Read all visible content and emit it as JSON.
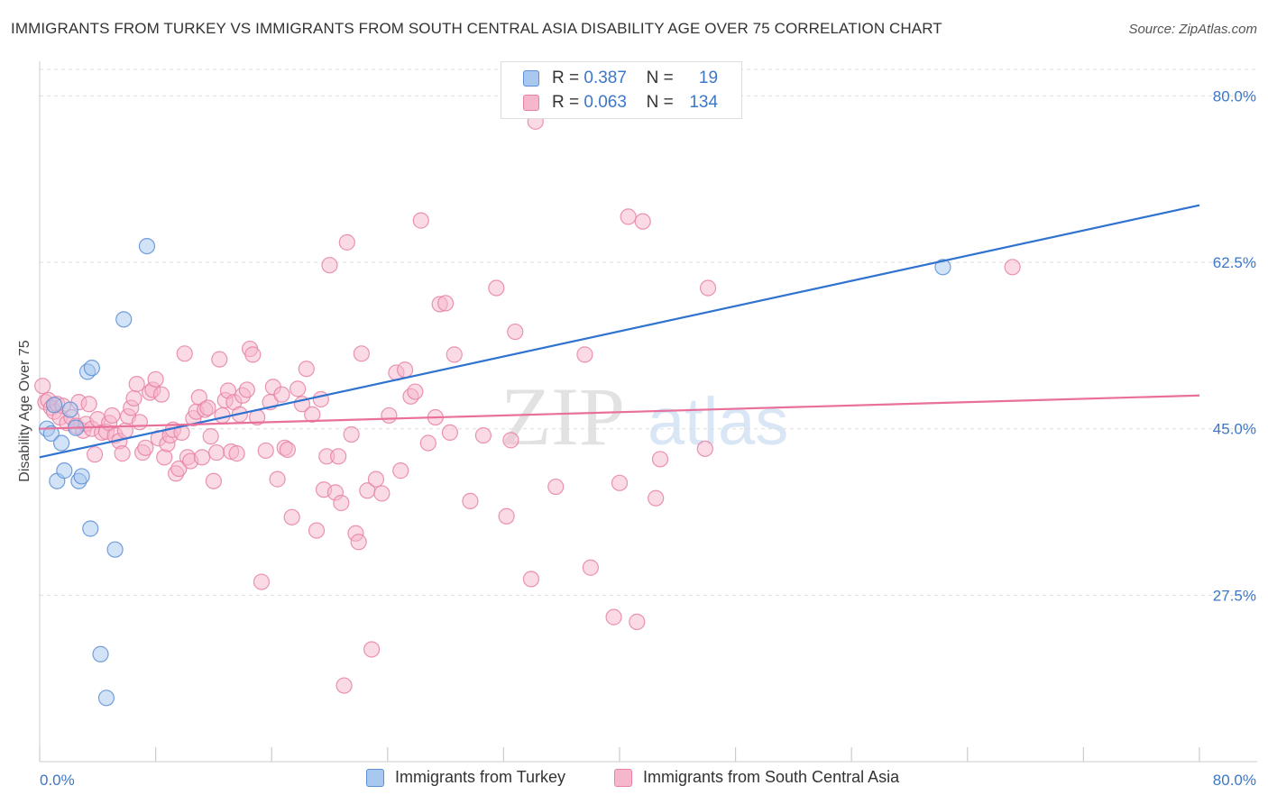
{
  "header": {
    "title": "IMMIGRANTS FROM TURKEY VS IMMIGRANTS FROM SOUTH CENTRAL ASIA DISABILITY AGE OVER 75 CORRELATION CHART",
    "source": "Source: ZipAtlas.com"
  },
  "watermark": {
    "zip": "ZIP",
    "atlas": "atlas"
  },
  "legend": {
    "turkey": {
      "r_label": "R =",
      "r_value": "0.387",
      "n_label": "N =",
      "n_value": "19"
    },
    "sca": {
      "r_label": "R =",
      "r_value": "0.063",
      "n_label": "N =",
      "n_value": "134"
    }
  },
  "colors": {
    "turkey_fill": "#a8c8f0",
    "turkey_stroke": "#5b8fd6",
    "turkey_line": "#2f72cf",
    "sca_fill": "#f6b6cb",
    "sca_stroke": "#e681a4",
    "sca_line": "#e8709a",
    "tick_label": "#3c77c9",
    "grid": "#dddddd"
  },
  "chart_data": {
    "type": "scatter",
    "ylabel": "Disability Age Over 75",
    "xlim": [
      0,
      80
    ],
    "ylim": [
      10,
      82.5
    ],
    "x_ticks": [
      {
        "value": 0,
        "label": "0.0%"
      },
      {
        "value": 80,
        "label": "80.0%"
      }
    ],
    "y_ticks": [
      {
        "value": 27.5,
        "label": "27.5%"
      },
      {
        "value": 45.0,
        "label": "45.0%"
      },
      {
        "value": 62.5,
        "label": "62.5%"
      },
      {
        "value": 80.0,
        "label": "80.0%"
      }
    ],
    "grid": "horizontal-dashed",
    "series": [
      {
        "name": "Immigrants from Turkey",
        "key": "turkey",
        "trend": {
          "x": [
            0,
            80
          ],
          "y": [
            42.0,
            68.5
          ]
        },
        "points": [
          [
            0.5,
            45.0
          ],
          [
            0.8,
            44.5
          ],
          [
            1.0,
            47.5
          ],
          [
            1.2,
            39.5
          ],
          [
            1.5,
            43.5
          ],
          [
            1.7,
            40.6
          ],
          [
            2.1,
            47.0
          ],
          [
            2.5,
            45.1
          ],
          [
            2.7,
            39.5
          ],
          [
            2.9,
            40.0
          ],
          [
            3.3,
            51.0
          ],
          [
            3.6,
            51.4
          ],
          [
            3.5,
            34.5
          ],
          [
            4.2,
            21.3
          ],
          [
            4.6,
            16.7
          ],
          [
            5.2,
            32.3
          ],
          [
            5.8,
            56.5
          ],
          [
            7.4,
            64.2
          ],
          [
            62.3,
            62.0
          ]
        ]
      },
      {
        "name": "Immigrants from South Central Asia",
        "key": "sca",
        "trend": {
          "x": [
            0,
            80
          ],
          "y": [
            45.0,
            48.5
          ]
        },
        "points": [
          [
            0.2,
            49.5
          ],
          [
            0.4,
            47.8
          ],
          [
            0.6,
            48.0
          ],
          [
            0.8,
            47.2
          ],
          [
            1.0,
            46.8
          ],
          [
            1.2,
            47.6
          ],
          [
            1.4,
            46.2
          ],
          [
            1.6,
            47.4
          ],
          [
            1.9,
            45.6
          ],
          [
            2.2,
            46.2
          ],
          [
            2.5,
            45.3
          ],
          [
            2.7,
            47.8
          ],
          [
            3.0,
            44.8
          ],
          [
            3.2,
            45.5
          ],
          [
            3.4,
            47.6
          ],
          [
            3.6,
            45.0
          ],
          [
            3.8,
            42.3
          ],
          [
            4.0,
            46.0
          ],
          [
            4.3,
            44.6
          ],
          [
            4.6,
            44.7
          ],
          [
            4.8,
            45.6
          ],
          [
            5.0,
            46.4
          ],
          [
            5.2,
            44.3
          ],
          [
            5.5,
            43.7
          ],
          [
            5.7,
            42.4
          ],
          [
            5.9,
            44.8
          ],
          [
            6.1,
            46.3
          ],
          [
            6.3,
            47.2
          ],
          [
            6.5,
            48.2
          ],
          [
            6.7,
            49.7
          ],
          [
            6.9,
            45.7
          ],
          [
            7.1,
            42.5
          ],
          [
            7.3,
            43.0
          ],
          [
            7.6,
            48.8
          ],
          [
            7.8,
            49.1
          ],
          [
            8.0,
            50.2
          ],
          [
            8.2,
            44.0
          ],
          [
            8.4,
            48.6
          ],
          [
            8.6,
            42.0
          ],
          [
            8.8,
            43.4
          ],
          [
            9.0,
            44.3
          ],
          [
            9.2,
            44.9
          ],
          [
            9.4,
            40.3
          ],
          [
            9.6,
            40.8
          ],
          [
            9.8,
            44.6
          ],
          [
            10.0,
            52.9
          ],
          [
            10.2,
            42.0
          ],
          [
            10.4,
            41.6
          ],
          [
            10.6,
            46.1
          ],
          [
            10.8,
            46.8
          ],
          [
            11.0,
            48.3
          ],
          [
            11.2,
            42.0
          ],
          [
            11.4,
            47.0
          ],
          [
            11.6,
            47.2
          ],
          [
            11.8,
            44.2
          ],
          [
            12.0,
            39.5
          ],
          [
            12.2,
            42.5
          ],
          [
            12.4,
            52.3
          ],
          [
            12.6,
            46.4
          ],
          [
            12.8,
            48.0
          ],
          [
            13.0,
            49.0
          ],
          [
            13.2,
            42.6
          ],
          [
            13.4,
            47.8
          ],
          [
            13.6,
            42.4
          ],
          [
            13.8,
            46.5
          ],
          [
            14.0,
            48.5
          ],
          [
            14.3,
            49.1
          ],
          [
            14.5,
            53.4
          ],
          [
            14.7,
            52.8
          ],
          [
            15.0,
            46.2
          ],
          [
            15.3,
            28.9
          ],
          [
            15.6,
            42.7
          ],
          [
            15.9,
            47.8
          ],
          [
            16.1,
            49.4
          ],
          [
            16.4,
            39.7
          ],
          [
            16.7,
            48.6
          ],
          [
            16.9,
            43.0
          ],
          [
            17.1,
            42.8
          ],
          [
            17.4,
            35.7
          ],
          [
            17.8,
            49.2
          ],
          [
            18.1,
            47.6
          ],
          [
            18.4,
            51.3
          ],
          [
            18.8,
            46.5
          ],
          [
            19.1,
            34.3
          ],
          [
            19.4,
            48.1
          ],
          [
            19.6,
            38.6
          ],
          [
            19.8,
            42.1
          ],
          [
            20.0,
            62.2
          ],
          [
            20.4,
            38.3
          ],
          [
            20.6,
            42.1
          ],
          [
            20.8,
            37.2
          ],
          [
            21.0,
            18.0
          ],
          [
            21.2,
            64.6
          ],
          [
            21.5,
            44.4
          ],
          [
            21.8,
            34.0
          ],
          [
            22.0,
            33.1
          ],
          [
            22.2,
            52.9
          ],
          [
            22.6,
            38.5
          ],
          [
            22.9,
            21.8
          ],
          [
            23.2,
            39.7
          ],
          [
            23.6,
            38.2
          ],
          [
            24.1,
            46.4
          ],
          [
            24.6,
            50.9
          ],
          [
            24.9,
            40.6
          ],
          [
            25.2,
            51.2
          ],
          [
            25.6,
            48.4
          ],
          [
            25.9,
            48.9
          ],
          [
            26.3,
            66.9
          ],
          [
            26.8,
            43.5
          ],
          [
            27.3,
            46.2
          ],
          [
            27.6,
            58.1
          ],
          [
            28.0,
            58.2
          ],
          [
            28.3,
            44.6
          ],
          [
            28.6,
            52.8
          ],
          [
            29.7,
            37.4
          ],
          [
            30.6,
            44.3
          ],
          [
            31.5,
            59.8
          ],
          [
            32.2,
            35.8
          ],
          [
            32.5,
            43.8
          ],
          [
            32.8,
            55.2
          ],
          [
            33.9,
            29.2
          ],
          [
            34.2,
            77.3
          ],
          [
            35.6,
            38.9
          ],
          [
            37.6,
            52.8
          ],
          [
            38.0,
            30.4
          ],
          [
            39.6,
            25.2
          ],
          [
            40.0,
            39.3
          ],
          [
            40.6,
            67.3
          ],
          [
            41.2,
            24.7
          ],
          [
            41.6,
            66.8
          ],
          [
            42.5,
            37.7
          ],
          [
            42.8,
            41.8
          ],
          [
            45.9,
            42.9
          ],
          [
            46.1,
            59.8
          ],
          [
            67.1,
            62.0
          ]
        ]
      }
    ]
  },
  "bottom_legend": {
    "turkey": "Immigrants from Turkey",
    "sca": "Immigrants from South Central Asia"
  }
}
